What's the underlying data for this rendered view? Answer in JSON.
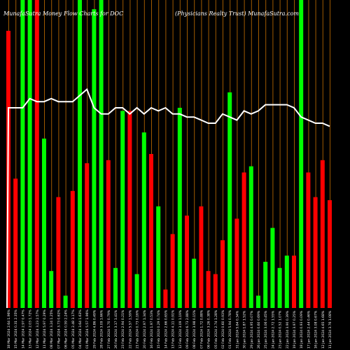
{
  "header": {
    "left_title": "MunafaSutra  Money Flow  Charts for DOC",
    "right_title": "(Physicians Realty Trust) MunafaSutra.com"
  },
  "chart_data": {
    "type": "bar",
    "colors": {
      "up": "#00ff00",
      "down": "#ff0000",
      "line": "#ffffff",
      "grid": "#a05a00",
      "background": "#000000"
    },
    "ylim": [
      0,
      100
    ],
    "categories": [
      "18 Mar 2024",
      "15 Mar 2024",
      "14 Mar 2024",
      "13 Mar 2024",
      "12 Mar 2024",
      "11 Mar 2024",
      "08 Mar 2024",
      "07 Mar 2024",
      "06 Mar 2024",
      "05 Mar 2024",
      "04 Mar 2024",
      "01 Mar 2024",
      "29 Feb 2024",
      "28 Feb 2024",
      "27 Feb 2024",
      "26 Feb 2024",
      "23 Feb 2024",
      "22 Feb 2024",
      "21 Feb 2024",
      "20 Feb 2024",
      "16 Feb 2024",
      "15 Feb 2024",
      "14 Feb 2024",
      "13 Feb 2024",
      "12 Feb 2024",
      "09 Feb 2024",
      "08 Feb 2024",
      "07 Feb 2024",
      "06 Feb 2024",
      "05 Feb 2024",
      "02 Feb 2024",
      "01 Feb 2024",
      "31 Jan 2024",
      "30 Jan 2024",
      "29 Jan 2024",
      "26 Jan 2024",
      "25 Jan 2024",
      "24 Jan 2024",
      "23 Jan 2024",
      "22 Jan 2024",
      "19 Jan 2024",
      "18 Jan 2024",
      "17 Jan 2024",
      "16 Jan 2024",
      "12 Jan 2024",
      "11 Jan 2024"
    ],
    "x_labels": [
      "2.64 1.96%",
      "0.31 2.35%",
      "2.97 0.47%",
      "2.03 1.72%",
      "3.23 2.57%",
      "5.97 0.29%",
      "3.24 1.25%",
      "3.73 0.61%",
      "0.59 2.24%",
      "2.48 3.17%",
      "3.64 1.63%",
      "5.57 1.96%",
      "4.86 0.49%",
      "3.09 1.66%",
      "5.70 0.79%",
      "3.17 1.41%",
      "2.94 0.21%",
      "5.57 1.59%",
      "0.73 0.16%",
      "2.97 1.34%",
      "1.97 0.53%",
      "0.29 0.74%",
      "2.66 0.65%",
      "4.11 0.91%",
      "3.09 1.19%",
      "6.73 2.88%",
      "3.98 0.15%",
      "1.72 0.88%",
      "3.26 0.38%",
      "2.74 1.28%",
      "0.60 0.93%",
      "5.94 0.78%",
      "5.64 0.34%",
      "1.87 1.52%",
      "4.95 0.07%",
      "0.60 0.69%",
      "3.06 0.45%",
      "2.72 1.55%",
      "0.52 1.07%",
      "3.90 0.39%",
      "3.97 0.25%",
      "0.93 0.09%",
      "2.44 0.46%",
      "3.08 0.67%",
      "4.65 1.68%",
      "3.76 1.08%"
    ],
    "directions": [
      "down",
      "down",
      "up",
      "up",
      "down",
      "up",
      "up",
      "down",
      "up",
      "down",
      "up",
      "down",
      "up",
      "up",
      "down",
      "up",
      "up",
      "down",
      "up",
      "up",
      "down",
      "up",
      "down",
      "down",
      "up",
      "down",
      "up",
      "down",
      "down",
      "down",
      "down",
      "up",
      "down",
      "down",
      "up",
      "up",
      "up",
      "up",
      "up",
      "up",
      "down",
      "up",
      "down",
      "down",
      "down",
      "down"
    ],
    "values": [
      90,
      42,
      100,
      100,
      100,
      55,
      12,
      36,
      4,
      38,
      100,
      47,
      97,
      100,
      48,
      13,
      64,
      64,
      11,
      57,
      50,
      33,
      6,
      24,
      65,
      30,
      16,
      33,
      12,
      11,
      22,
      70,
      29,
      44,
      46,
      4,
      15,
      26,
      13,
      17,
      17,
      100,
      44,
      36,
      48,
      35
    ],
    "line": [
      65,
      65,
      65,
      68,
      67,
      67,
      68,
      67,
      67,
      67,
      69,
      71,
      65,
      63,
      63,
      65,
      65,
      63,
      65,
      63,
      65,
      64,
      65,
      63,
      63,
      62,
      62,
      61,
      60,
      60,
      63,
      62,
      61,
      64,
      63,
      64,
      66,
      66,
      66,
      66,
      65,
      62,
      61,
      60,
      60,
      59
    ]
  }
}
